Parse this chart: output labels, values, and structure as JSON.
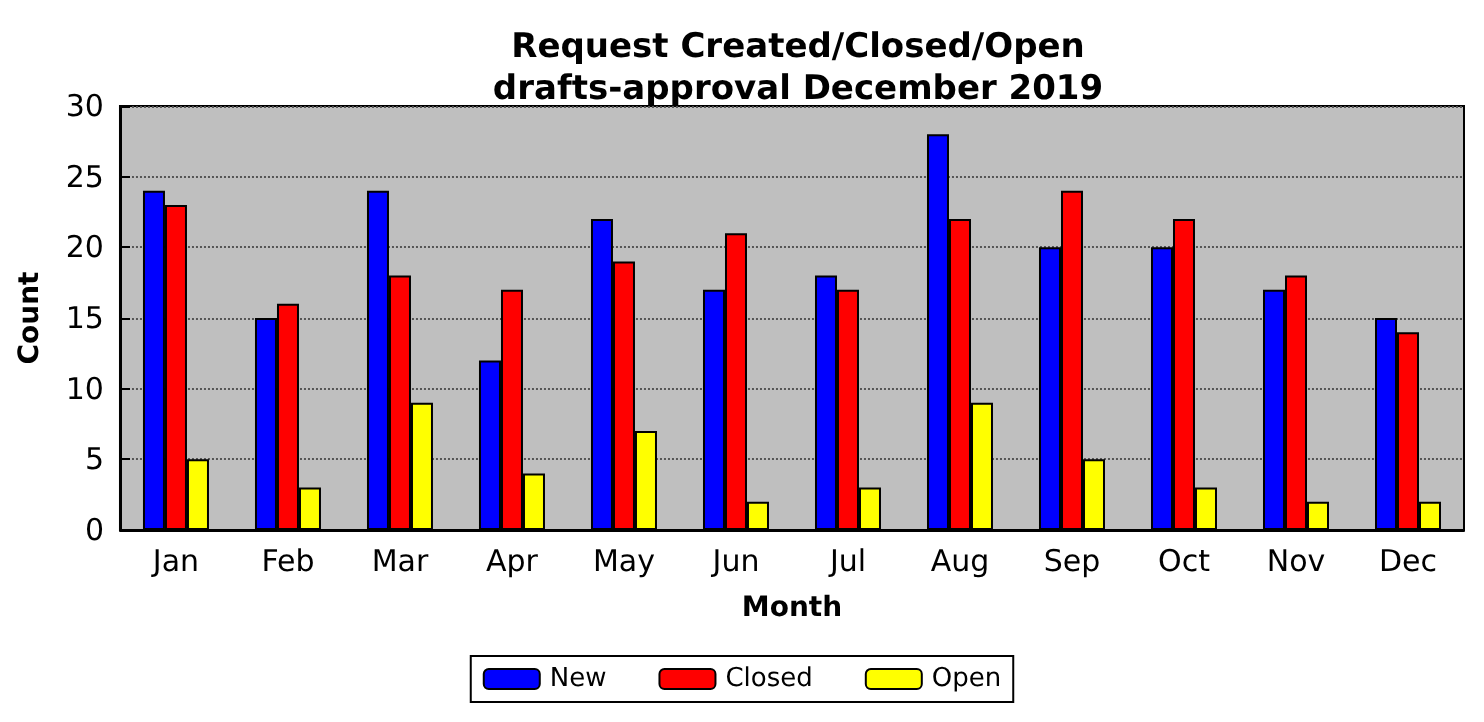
{
  "chart_data": {
    "type": "bar",
    "title": "Request Created/Closed/Open\ndrafts-approval December 2019",
    "xlabel": "Month",
    "ylabel": "Count",
    "categories": [
      "Jan",
      "Feb",
      "Mar",
      "Apr",
      "May",
      "Jun",
      "Jul",
      "Aug",
      "Sep",
      "Oct",
      "Nov",
      "Dec"
    ],
    "series": [
      {
        "name": "New",
        "color": "#0000ff",
        "values": [
          24,
          15,
          24,
          12,
          22,
          17,
          18,
          28,
          20,
          20,
          17,
          15
        ]
      },
      {
        "name": "Closed",
        "color": "#ff0000",
        "values": [
          23,
          16,
          18,
          17,
          19,
          21,
          17,
          22,
          24,
          22,
          18,
          14
        ]
      },
      {
        "name": "Open",
        "color": "#ffff00",
        "values": [
          5,
          3,
          9,
          4,
          7,
          2,
          3,
          9,
          5,
          3,
          2,
          2
        ]
      }
    ],
    "ylim": [
      0,
      30
    ],
    "yticks": [
      0,
      5,
      10,
      15,
      20,
      25,
      30
    ],
    "grid": "y",
    "legend": "bottom"
  }
}
